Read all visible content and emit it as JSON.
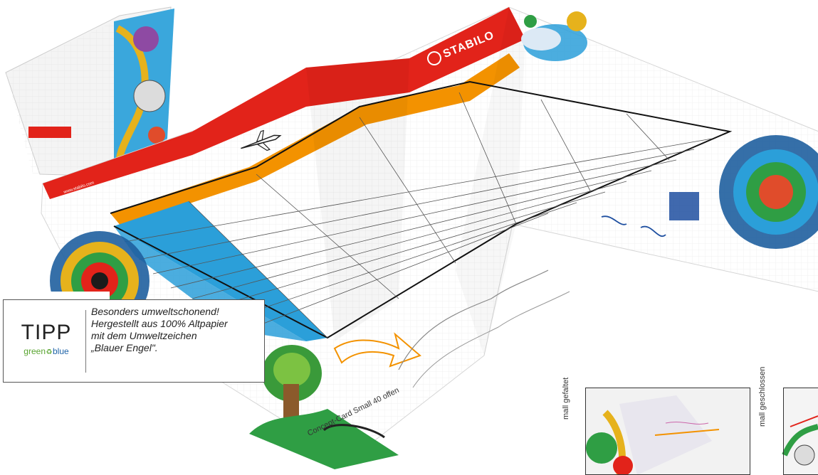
{
  "product": {
    "brand": "STABILO",
    "website": "www.stabilo.com"
  },
  "tip": {
    "title": "TIPP",
    "logo_green": "green",
    "logo_blue": "blue",
    "lines": [
      "Besonders umweltschonend!",
      "Hergestellt aus 100% Altpapier",
      "mit dem Umweltzeichen",
      "„Blauer Engel\"."
    ]
  },
  "captions": {
    "open": "Concept-Card Small 40 offen",
    "folded": "mall gefaltet",
    "closed": "mall geschlossen"
  },
  "colors": {
    "brand_red": "#e2231a",
    "accent_orange": "#f39200",
    "accent_blue": "#2b9fd9",
    "logo_green": "#5aa531",
    "logo_blue": "#1e63a8"
  },
  "icons": [
    "airplane-icon",
    "arrow-doodle-icon",
    "recycle-icon",
    "tree-illustration"
  ]
}
